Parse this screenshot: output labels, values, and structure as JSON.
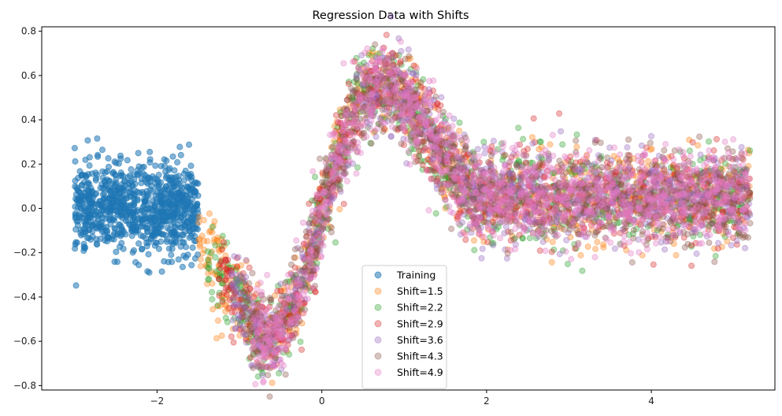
{
  "chart_data": {
    "type": "scatter",
    "title": "Regression Data with Shifts",
    "xlabel": "",
    "ylabel": "",
    "xlim": [
      -3.4,
      5.5
    ],
    "ylim": [
      -0.82,
      0.82
    ],
    "xticks": [
      -2,
      0,
      2,
      4
    ],
    "xtick_labels": [
      "−2",
      "0",
      "2",
      "4"
    ],
    "yticks": [
      -0.8,
      -0.6,
      -0.4,
      -0.2,
      0.0,
      0.2,
      0.4,
      0.6,
      0.8
    ],
    "ytick_labels": [
      "−0.8",
      "−0.6",
      "−0.4",
      "−0.2",
      "0.0",
      "0.2",
      "0.4",
      "0.6",
      "0.8"
    ],
    "grid": false,
    "legend_position": "bottom-center",
    "underlying_function": "y = 0.1*sin(2x) + 0.5*sin(x)*exp(-0.1*x^2)-ish curve: ~0 for x<-1.5, min -0.6 at x~-0.7, max ~0.55 at x~0.7, ~0.05 for x>2",
    "series": [
      {
        "name": "Training",
        "color": "#1f77b4",
        "alpha": 0.55,
        "x_range": [
          -3.0,
          -1.5
        ],
        "n_points": 900
      },
      {
        "name": "Shift=1.5",
        "color": "#ff7f0e",
        "alpha": 0.35,
        "x_range": [
          -1.5,
          5.2
        ],
        "n_points": 900
      },
      {
        "name": "Shift=2.2",
        "color": "#2ca02c",
        "alpha": 0.35,
        "x_range": [
          -1.4,
          5.2
        ],
        "n_points": 900
      },
      {
        "name": "Shift=2.9",
        "color": "#d62728",
        "alpha": 0.35,
        "x_range": [
          -1.25,
          5.2
        ],
        "n_points": 900
      },
      {
        "name": "Shift=3.6",
        "color": "#9467bd",
        "alpha": 0.35,
        "x_range": [
          -1.1,
          5.2
        ],
        "n_points": 900
      },
      {
        "name": "Shift=4.3",
        "color": "#8c564b",
        "alpha": 0.35,
        "x_range": [
          -0.95,
          5.2
        ],
        "n_points": 900
      },
      {
        "name": "Shift=4.9",
        "color": "#e377c2",
        "alpha": 0.35,
        "x_range": [
          -0.85,
          5.2
        ],
        "n_points": 1400
      }
    ]
  }
}
